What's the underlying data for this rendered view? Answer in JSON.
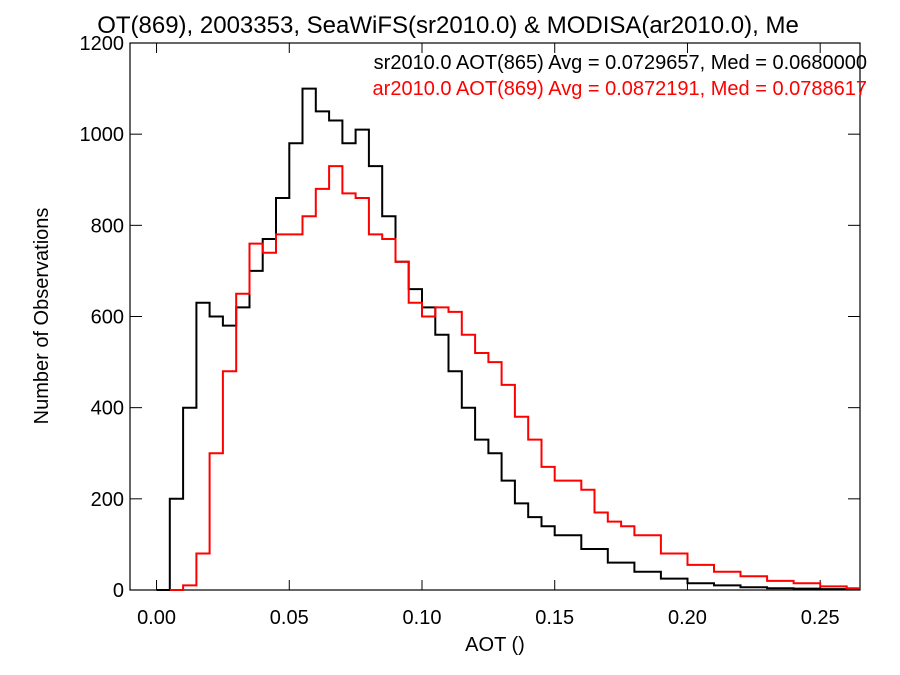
{
  "chart_data": {
    "type": "line",
    "title": "OT(869), 2003353, SeaWiFS(sr2010.0) & MODISA(ar2010.0), Me",
    "xlabel": "AOT ()",
    "ylabel": "Number of Observations",
    "xlim": [
      -0.01,
      0.265
    ],
    "ylim": [
      0,
      1200
    ],
    "x_ticks": [
      0.0,
      0.05,
      0.1,
      0.15,
      0.2,
      0.25
    ],
    "x_tick_labels": [
      "0.00",
      "0.05",
      "0.10",
      "0.15",
      "0.20",
      "0.25"
    ],
    "y_ticks": [
      0,
      200,
      400,
      600,
      800,
      1000,
      1200
    ],
    "y_tick_labels": [
      "0",
      "200",
      "400",
      "600",
      "800",
      "1000",
      "1200"
    ],
    "grid": false,
    "legend_position": "top-right",
    "series": [
      {
        "name": "sr2010.0 AOT(865) Avg = 0.0729657, Med = 0.0680000",
        "color": "#000000",
        "x": [
          0.0,
          0.005,
          0.01,
          0.015,
          0.02,
          0.025,
          0.03,
          0.035,
          0.04,
          0.045,
          0.05,
          0.055,
          0.06,
          0.065,
          0.07,
          0.075,
          0.08,
          0.085,
          0.09,
          0.095,
          0.1,
          0.105,
          0.11,
          0.115,
          0.12,
          0.125,
          0.13,
          0.135,
          0.14,
          0.145,
          0.15,
          0.16,
          0.17,
          0.18,
          0.19,
          0.2,
          0.21,
          0.22,
          0.23,
          0.24,
          0.25,
          0.26
        ],
        "y": [
          0,
          200,
          400,
          630,
          600,
          580,
          620,
          700,
          770,
          860,
          980,
          1100,
          1050,
          1030,
          980,
          1010,
          930,
          820,
          720,
          660,
          620,
          560,
          480,
          400,
          330,
          300,
          240,
          190,
          160,
          140,
          120,
          90,
          60,
          40,
          25,
          15,
          10,
          6,
          4,
          3,
          2,
          1
        ]
      },
      {
        "name": "ar2010.0 AOT(869) Avg = 0.0872191, Med = 0.0788617",
        "color": "#ff0000",
        "x": [
          0.005,
          0.01,
          0.015,
          0.02,
          0.025,
          0.03,
          0.035,
          0.04,
          0.045,
          0.05,
          0.055,
          0.06,
          0.065,
          0.07,
          0.075,
          0.08,
          0.085,
          0.09,
          0.095,
          0.1,
          0.105,
          0.11,
          0.115,
          0.12,
          0.125,
          0.13,
          0.135,
          0.14,
          0.145,
          0.15,
          0.155,
          0.16,
          0.165,
          0.17,
          0.175,
          0.18,
          0.19,
          0.2,
          0.21,
          0.22,
          0.23,
          0.24,
          0.25,
          0.26
        ],
        "y": [
          0,
          10,
          80,
          300,
          480,
          650,
          760,
          740,
          780,
          780,
          820,
          880,
          930,
          870,
          860,
          780,
          770,
          720,
          630,
          600,
          620,
          610,
          560,
          520,
          500,
          450,
          380,
          330,
          270,
          240,
          240,
          220,
          170,
          150,
          140,
          120,
          80,
          55,
          40,
          30,
          20,
          15,
          8,
          4
        ]
      }
    ]
  }
}
